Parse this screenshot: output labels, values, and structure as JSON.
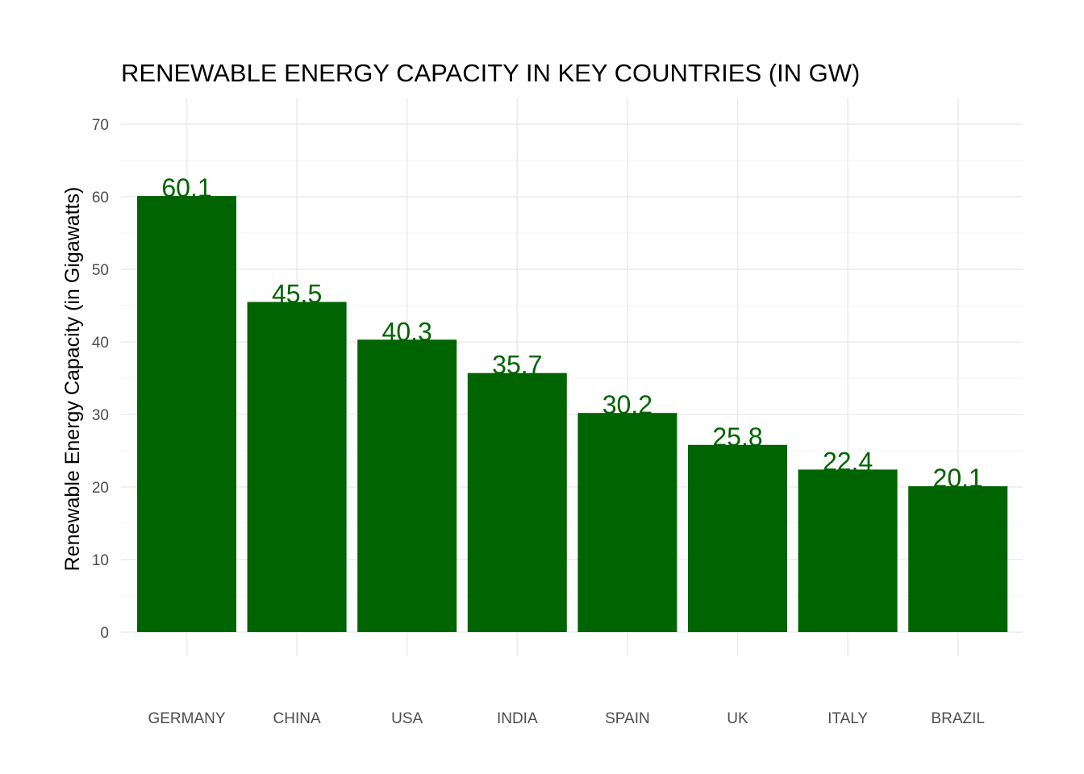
{
  "chart_data": {
    "type": "bar",
    "title": "RENEWABLE ENERGY CAPACITY IN KEY COUNTRIES (IN GW)",
    "xlabel": "",
    "ylabel": "Renewable Energy Capacity (in Gigawatts)",
    "categories": [
      "GERMANY",
      "CHINA",
      "USA",
      "INDIA",
      "SPAIN",
      "UK",
      "ITALY",
      "BRAZIL"
    ],
    "values": [
      60.1,
      45.5,
      40.3,
      35.7,
      30.2,
      25.8,
      22.4,
      20.1
    ],
    "value_labels": [
      "60.1",
      "45.5",
      "40.3",
      "35.7",
      "30.2",
      "25.8",
      "22.4",
      "20.1"
    ],
    "ylim": [
      0,
      70
    ],
    "yticks": [
      0,
      10,
      20,
      30,
      40,
      50,
      60,
      70
    ],
    "ytick_labels": [
      "0",
      "10",
      "20",
      "30",
      "40",
      "50",
      "60",
      "70"
    ],
    "grid": true,
    "legend": "none",
    "colors": {
      "bar": "#006400",
      "value_label": "#006400",
      "grid_major": "#ebebeb",
      "grid_minor": "#f5f5f5"
    }
  }
}
